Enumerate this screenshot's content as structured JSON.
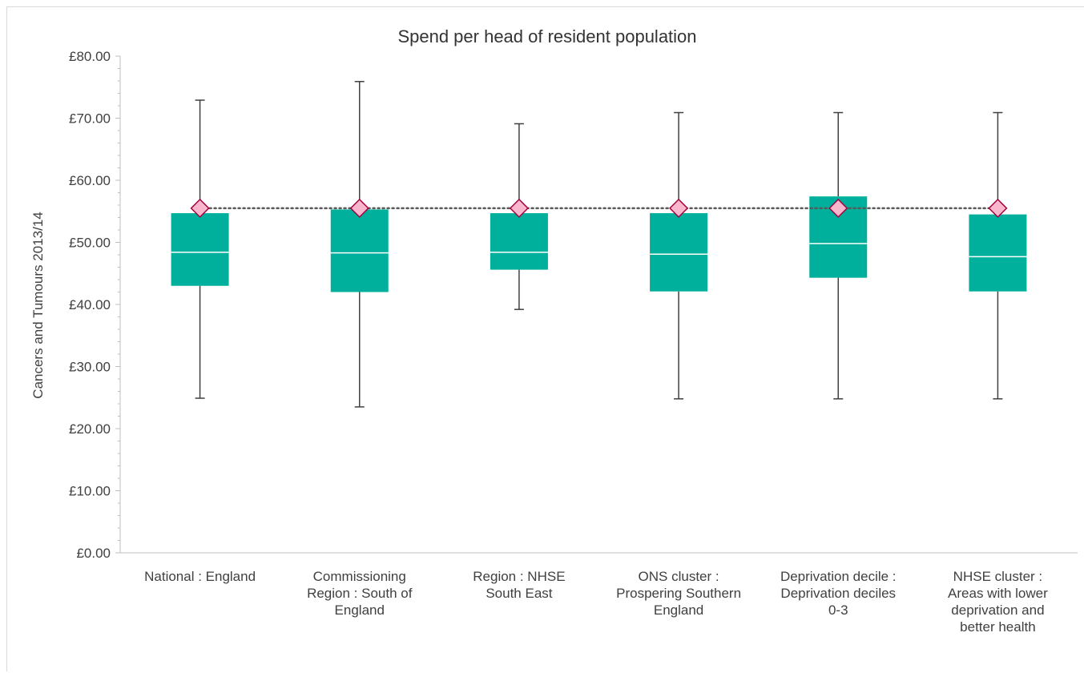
{
  "chart_data": {
    "type": "box",
    "title": "Spend per head of resident population",
    "ylabel": "Cancers and Tumours 2013/14",
    "xlabel": "",
    "ylim": [
      0,
      80
    ],
    "y_tick_labels": [
      "£0.00",
      "£10.00",
      "£20.00",
      "£30.00",
      "£40.00",
      "£50.00",
      "£60.00",
      "£70.00",
      "£80.00"
    ],
    "y_ticks": [
      0,
      10,
      20,
      30,
      40,
      50,
      60,
      70,
      80
    ],
    "grid": false,
    "legend": "none",
    "categories": [
      [
        "National : England"
      ],
      [
        "Commissioning",
        "Region : South of",
        "England"
      ],
      [
        "Region : NHSE",
        "South East"
      ],
      [
        "ONS cluster :",
        "Prospering Southern",
        "England"
      ],
      [
        "Deprivation decile :",
        "Deprivation deciles",
        "0-3"
      ],
      [
        "NHSE cluster :",
        "Areas with lower",
        "deprivation and",
        "better health"
      ]
    ],
    "boxes": [
      {
        "min": 24.9,
        "q1": 43.0,
        "median": 48.4,
        "q3": 54.7,
        "max": 72.9,
        "marker": 55.5
      },
      {
        "min": 23.5,
        "q1": 42.0,
        "median": 48.3,
        "q3": 55.3,
        "max": 75.9,
        "marker": 55.5
      },
      {
        "min": 39.2,
        "q1": 45.6,
        "median": 48.4,
        "q3": 54.7,
        "max": 69.1,
        "marker": 55.5
      },
      {
        "min": 24.8,
        "q1": 42.1,
        "median": 48.1,
        "q3": 54.7,
        "max": 70.9,
        "marker": 55.5
      },
      {
        "min": 24.8,
        "q1": 44.3,
        "median": 49.8,
        "q3": 57.4,
        "max": 70.9,
        "marker": 55.5
      },
      {
        "min": 24.8,
        "q1": 42.1,
        "median": 47.7,
        "q3": 54.5,
        "max": 70.9,
        "marker": 55.5
      }
    ],
    "reference_line": 55.5,
    "colors": {
      "box": "#00b09c",
      "median": "#ffffff",
      "whisker": "#404040",
      "marker_fill": "#f9b6cc",
      "marker_stroke": "#a5003f",
      "reference_line": "#595959",
      "axis": "#bfbfbf"
    }
  }
}
